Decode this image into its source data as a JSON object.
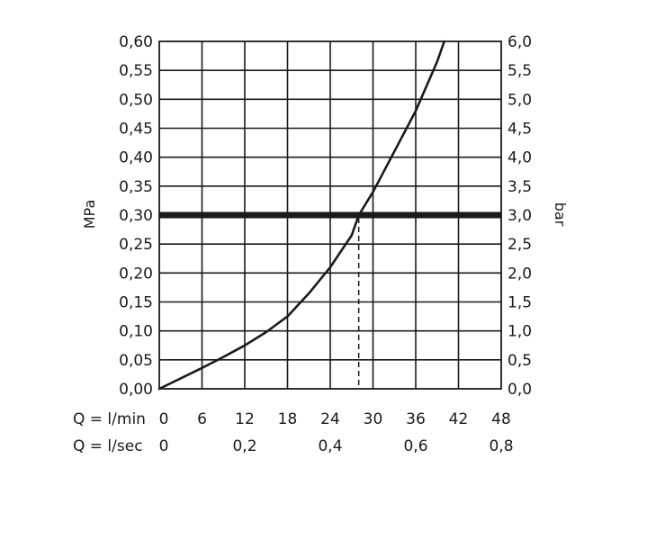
{
  "chart_data": {
    "type": "line",
    "ylabel_left": "MPa",
    "ylabel_right": "bar",
    "x_ticks_lmin": [
      "0",
      "6",
      "12",
      "18",
      "24",
      "30",
      "36",
      "42",
      "48"
    ],
    "x_ticks_lsec": [
      "0",
      "0,2",
      "0,4",
      "0,6",
      "0,8"
    ],
    "x_row1_label": "Q = l/min",
    "x_row2_label": "Q = l/sec",
    "y_left_ticks": [
      "0,00",
      "0,05",
      "0,10",
      "0,15",
      "0,20",
      "0,25",
      "0,30",
      "0,35",
      "0,40",
      "0,45",
      "0,50",
      "0,55",
      "0,60"
    ],
    "y_right_ticks": [
      "0,0",
      "0,5",
      "1,0",
      "1,5",
      "2,0",
      "2,5",
      "3,0",
      "3,5",
      "4,0",
      "4,5",
      "5,0",
      "5,5",
      "6,0"
    ],
    "xlim": [
      0,
      48
    ],
    "ylim": [
      0,
      0.6
    ],
    "grid": true,
    "series": [
      {
        "x": [
          0,
          3,
          6,
          9,
          12,
          15,
          18,
          21,
          24,
          27,
          28,
          30,
          33,
          36,
          39,
          40
        ],
        "y": [
          0,
          0.018,
          0.036,
          0.055,
          0.075,
          0.098,
          0.125,
          0.165,
          0.21,
          0.265,
          0.3,
          0.34,
          0.41,
          0.48,
          0.565,
          0.6
        ]
      }
    ],
    "reference_line_y": 0.3,
    "reference_drop_x": 28
  }
}
